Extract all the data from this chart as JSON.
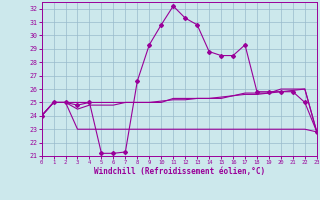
{
  "xlabel": "Windchill (Refroidissement éolien,°C)",
  "bg_color": "#cce8ec",
  "grid_color": "#99bbcc",
  "line_color": "#990099",
  "xlim": [
    0,
    23
  ],
  "ylim": [
    21,
    32.5
  ],
  "yticks": [
    21,
    22,
    23,
    24,
    25,
    26,
    27,
    28,
    29,
    30,
    31,
    32
  ],
  "xticks": [
    0,
    1,
    2,
    3,
    4,
    5,
    6,
    7,
    8,
    9,
    10,
    11,
    12,
    13,
    14,
    15,
    16,
    17,
    18,
    19,
    20,
    21,
    22,
    23
  ],
  "line1_x": [
    0,
    1,
    2,
    3,
    4,
    5,
    6,
    7,
    8,
    9,
    10,
    11,
    12,
    13,
    14,
    15,
    16,
    17,
    18,
    19,
    20,
    21,
    22,
    23
  ],
  "line1_y": [
    24.0,
    25.0,
    25.0,
    24.8,
    25.0,
    21.2,
    21.2,
    21.3,
    26.6,
    29.3,
    30.8,
    32.2,
    31.3,
    30.8,
    28.8,
    28.5,
    28.5,
    29.3,
    25.8,
    25.8,
    25.8,
    25.8,
    25.0,
    22.8
  ],
  "line2_x": [
    0,
    1,
    2,
    3,
    4,
    5,
    6,
    7,
    8,
    9,
    10,
    11,
    12,
    13,
    14,
    15,
    16,
    17,
    18,
    19,
    20,
    21,
    22,
    23
  ],
  "line2_y": [
    24.0,
    25.0,
    25.0,
    23.0,
    23.0,
    23.0,
    23.0,
    23.0,
    23.0,
    23.0,
    23.0,
    23.0,
    23.0,
    23.0,
    23.0,
    23.0,
    23.0,
    23.0,
    23.0,
    23.0,
    23.0,
    23.0,
    23.0,
    22.8
  ],
  "line3_x": [
    0,
    1,
    2,
    3,
    4,
    5,
    6,
    7,
    8,
    9,
    10,
    11,
    12,
    13,
    14,
    15,
    16,
    17,
    18,
    19,
    20,
    21,
    22,
    23
  ],
  "line3_y": [
    24.0,
    25.0,
    25.0,
    25.0,
    25.0,
    25.0,
    25.0,
    25.0,
    25.0,
    25.0,
    25.0,
    25.3,
    25.3,
    25.3,
    25.3,
    25.3,
    25.5,
    25.7,
    25.7,
    25.7,
    26.0,
    26.0,
    26.0,
    22.8
  ],
  "line4_x": [
    0,
    1,
    2,
    3,
    4,
    5,
    6,
    7,
    8,
    9,
    10,
    11,
    12,
    13,
    14,
    15,
    16,
    17,
    18,
    19,
    20,
    21,
    22,
    23
  ],
  "line4_y": [
    24.0,
    25.0,
    25.0,
    24.5,
    24.8,
    24.8,
    24.8,
    25.0,
    25.0,
    25.0,
    25.1,
    25.2,
    25.2,
    25.3,
    25.3,
    25.4,
    25.5,
    25.6,
    25.6,
    25.7,
    25.8,
    25.9,
    26.0,
    22.8
  ]
}
